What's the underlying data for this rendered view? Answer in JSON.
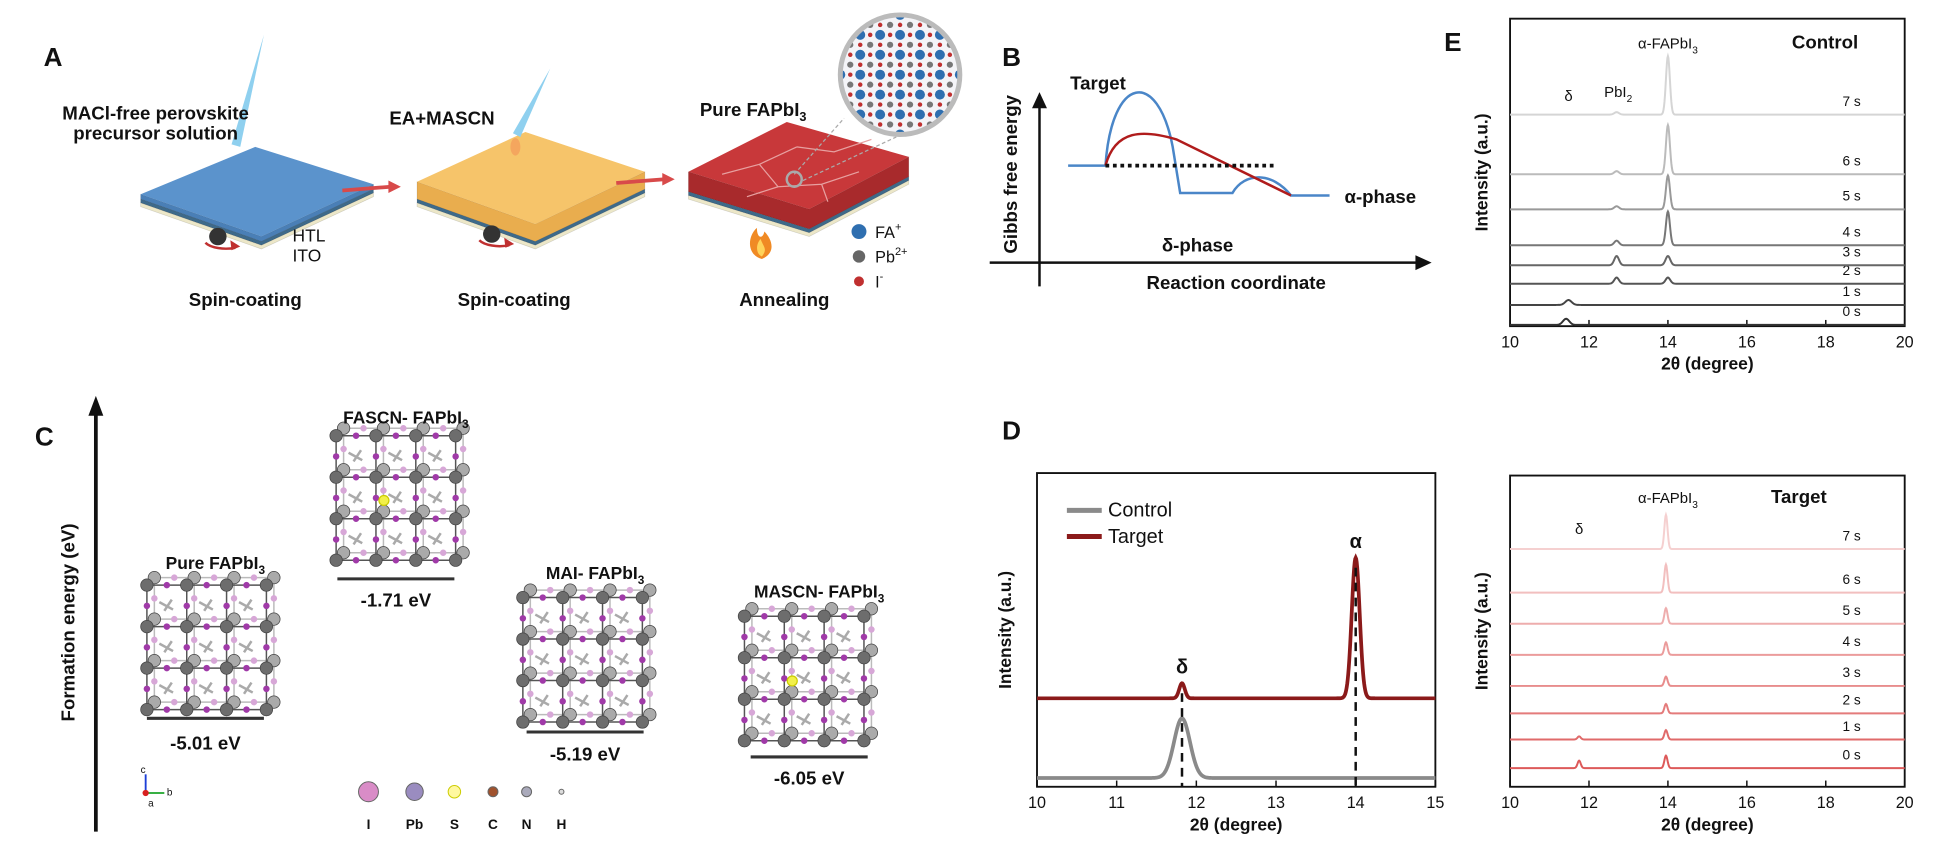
{
  "A": {
    "label": "A",
    "precursor": [
      "MACl-free perovskite",
      "precursor solution"
    ],
    "additive": "EA+MASCN",
    "film": [
      "Pure FAPbI",
      "3"
    ],
    "layers": [
      "HTL",
      "ITO"
    ],
    "steps": [
      "Spin-coating",
      "Spin-coating",
      "Annealing"
    ],
    "legend": [
      [
        "FA",
        "+"
      ],
      [
        "Pb",
        "2+"
      ],
      [
        "I",
        "-"
      ]
    ]
  },
  "B": {
    "label": "B",
    "ylabel": "Gibbs free energy",
    "xlabel": "Reaction coordinate",
    "target": "Target",
    "delta": "δ-phase",
    "alpha": "α-phase"
  },
  "C": {
    "label": "C",
    "ylabel": "Formation energy (eV)",
    "structures": [
      {
        "name": [
          "Pure FAPbI",
          "3"
        ],
        "energy": "-5.01 eV"
      },
      {
        "name": [
          "FASCN- FAPbI",
          "3"
        ],
        "energy": "-1.71 eV"
      },
      {
        "name": [
          "MAI- FAPbI",
          "3"
        ],
        "energy": "-5.19 eV"
      },
      {
        "name": [
          "MASCN- FAPbI",
          "3"
        ],
        "energy": "-6.05 eV"
      }
    ],
    "atoms": [
      "I",
      "Pb",
      "S",
      "C",
      "N",
      "H"
    ],
    "axes": [
      "c",
      "b",
      "a"
    ]
  },
  "D": {
    "label": "D",
    "chart_data": {
      "type": "line",
      "xlabel": "2θ (degree)",
      "ylabel": "Intensity (a.u.)",
      "xlim": [
        10,
        15
      ],
      "xticks": [
        10,
        11,
        12,
        13,
        14,
        15
      ],
      "ylim": [
        0,
        100
      ],
      "series": [
        {
          "name": "Control",
          "color": "#8a8a8a",
          "offset": 2.8,
          "peaks": [
            {
              "x": 11.82,
              "height": 19,
              "width": 0.1
            }
          ]
        },
        {
          "name": "Target",
          "color": "#8b1a1a",
          "offset": 28.2,
          "peaks": [
            {
              "x": 11.82,
              "height": 4.8,
              "width": 0.035
            },
            {
              "x": 14.0,
              "height": 44.8,
              "width": 0.05
            }
          ]
        }
      ],
      "annotations": [
        {
          "text": "δ",
          "x": 11.82
        },
        {
          "text": "α",
          "x": 14.0
        }
      ]
    }
  },
  "E": {
    "label": "E",
    "charts": [
      {
        "type": "line",
        "title": "Control",
        "xlabel": "2θ (degree)",
        "ylabel": "Intensity (a.u.)",
        "xlim": [
          10,
          20
        ],
        "xticks": [
          10,
          12,
          14,
          16,
          18,
          20
        ],
        "ylim": [
          0,
          100
        ],
        "annotations": [
          {
            "text": [
              "α-FAPbI",
              "3"
            ],
            "x": 14.0
          },
          {
            "text": "δ",
            "x": 11.48
          },
          {
            "text": [
              "PbI",
              "2"
            ],
            "x": 12.74
          }
        ],
        "series": [
          {
            "name": "0 s",
            "color": "#333333",
            "offset": 0.4,
            "peaks": [
              {
                "x": 11.42,
                "height": 2,
                "width": 0.08
              }
            ]
          },
          {
            "name": "1 s",
            "color": "#444444",
            "offset": 6.9,
            "peaks": [
              {
                "x": 11.48,
                "height": 1.6,
                "width": 0.08
              }
            ]
          },
          {
            "name": "2 s",
            "color": "#555555",
            "offset": 13.8,
            "peaks": [
              {
                "x": 12.7,
                "height": 2,
                "width": 0.06
              },
              {
                "x": 14.0,
                "height": 2,
                "width": 0.06
              }
            ]
          },
          {
            "name": "3 s",
            "color": "#666666",
            "offset": 19.8,
            "peaks": [
              {
                "x": 12.7,
                "height": 3,
                "width": 0.06
              },
              {
                "x": 14.0,
                "height": 3,
                "width": 0.06
              }
            ]
          },
          {
            "name": "4 s",
            "color": "#777777",
            "offset": 26.3,
            "peaks": [
              {
                "x": 12.7,
                "height": 1.5,
                "width": 0.06
              },
              {
                "x": 14.0,
                "height": 11,
                "width": 0.05
              }
            ]
          },
          {
            "name": "5 s",
            "color": "#999999",
            "offset": 38,
            "peaks": [
              {
                "x": 12.7,
                "height": 1,
                "width": 0.06
              },
              {
                "x": 14.0,
                "height": 11,
                "width": 0.05
              }
            ]
          },
          {
            "name": "6 s",
            "color": "#bbbbbb",
            "offset": 49.4,
            "peaks": [
              {
                "x": 12.7,
                "height": 1,
                "width": 0.06
              },
              {
                "x": 14.0,
                "height": 16,
                "width": 0.05
              }
            ]
          },
          {
            "name": "7 s",
            "color": "#d5d5d5",
            "offset": 68.8,
            "peaks": [
              {
                "x": 12.7,
                "height": 0.8,
                "width": 0.06
              },
              {
                "x": 14.0,
                "height": 19,
                "width": 0.05
              }
            ]
          }
        ]
      },
      {
        "type": "line",
        "title": "Target",
        "xlabel": "2θ (degree)",
        "ylabel": "Intensity (a.u.)",
        "xlim": [
          10,
          20
        ],
        "xticks": [
          10,
          12,
          14,
          16,
          18,
          20
        ],
        "ylim": [
          0,
          100
        ],
        "annotations": [
          {
            "text": [
              "α-FAPbI",
              "3"
            ],
            "x": 14.0
          },
          {
            "text": "δ",
            "x": 11.75
          }
        ],
        "series": [
          {
            "name": "0 s",
            "color": "#dd5a5a",
            "offset": 6,
            "peaks": [
              {
                "x": 11.75,
                "height": 2.4,
                "width": 0.04
              },
              {
                "x": 13.95,
                "height": 4,
                "width": 0.04
              }
            ]
          },
          {
            "name": "1 s",
            "color": "#e06a6a",
            "offset": 15.2,
            "peaks": [
              {
                "x": 11.75,
                "height": 1,
                "width": 0.04
              },
              {
                "x": 13.95,
                "height": 3,
                "width": 0.04
              }
            ]
          },
          {
            "name": "2 s",
            "color": "#e47b7b",
            "offset": 23.6,
            "peaks": [
              {
                "x": 13.95,
                "height": 3,
                "width": 0.04
              }
            ]
          },
          {
            "name": "3 s",
            "color": "#e88c8c",
            "offset": 32.4,
            "peaks": [
              {
                "x": 13.95,
                "height": 3,
                "width": 0.04
              }
            ]
          },
          {
            "name": "4 s",
            "color": "#eb9c9c",
            "offset": 42.4,
            "peaks": [
              {
                "x": 13.95,
                "height": 4,
                "width": 0.04
              }
            ]
          },
          {
            "name": "5 s",
            "color": "#eeadad",
            "offset": 52.4,
            "peaks": [
              {
                "x": 13.95,
                "height": 5,
                "width": 0.04
              }
            ]
          },
          {
            "name": "6 s",
            "color": "#f2bfbf",
            "offset": 62.4,
            "peaks": [
              {
                "x": 13.95,
                "height": 9,
                "width": 0.04
              }
            ]
          },
          {
            "name": "7 s",
            "color": "#f5d0d0",
            "offset": 76.4,
            "peaks": [
              {
                "x": 13.95,
                "height": 11,
                "width": 0.04
              }
            ]
          }
        ]
      }
    ]
  }
}
